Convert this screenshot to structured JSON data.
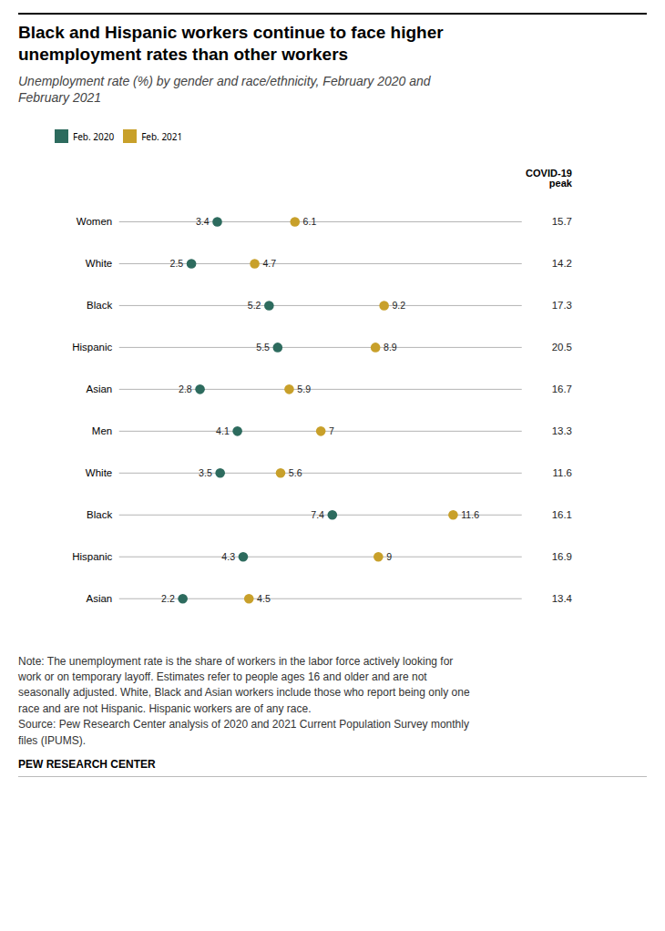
{
  "chart_data": {
    "type": "dot",
    "title": "Black and Hispanic workers continue to face higher\nunemployment rates than other workers",
    "subtitle": "Unemployment rate (%) by gender and race/ethnicity, February 2020 and\nFebruary 2021",
    "categories": [
      "Women",
      "White",
      "Black",
      "Hispanic",
      "Asian",
      "Men",
      "White",
      "Black",
      "Hispanic",
      "Asian"
    ],
    "series": [
      {
        "name": "Feb. 2020",
        "color": "#2d6b5e",
        "values": [
          3.4,
          2.5,
          5.2,
          5.5,
          2.8,
          4.1,
          3.5,
          7.4,
          4.3,
          2.2
        ]
      },
      {
        "name": "Feb. 2021",
        "color": "#c8a02a",
        "values": [
          6.1,
          4.7,
          9.2,
          8.9,
          5.9,
          7.0,
          5.6,
          11.6,
          9.0,
          4.5
        ]
      }
    ],
    "covid_header": "COVID-19\npeak",
    "covid_values": [
      15.7,
      14.2,
      17.3,
      20.5,
      16.7,
      13.3,
      11.6,
      16.1,
      16.9,
      13.4
    ],
    "xlim": [
      0,
      14
    ],
    "tick_labels": "y",
    "grid": false,
    "data_labels": true,
    "legend": "top",
    "caption": "Note: The unemployment rate is the share of workers in the labor force actively looking for\nwork or on temporary layoff. Estimates refer to people ages 16 and older and are not\nseasonally adjusted. White, Black and Asian workers include those who report being only one\nrace and are not Hispanic. Hispanic workers are of any race.\nSource: Pew Research Center analysis of 2020 and 2021 Current Population Survey monthly\nfiles (IPUMS).",
    "credit": "PEW RESEARCH CENTER"
  }
}
